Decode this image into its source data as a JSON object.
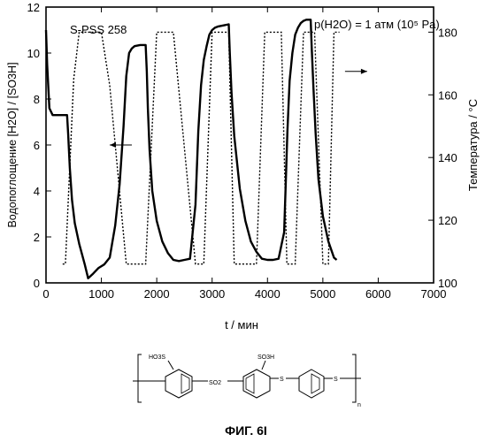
{
  "chart_data": {
    "type": "line",
    "series_name": "S-PSS 258",
    "xlabel": "t / мин",
    "ylabel_left": "Водопоглощение  [H2O] / [SO3H]",
    "ylabel_right": "Температура / °С",
    "annotation": "p(H2O) = 1 атм (10⁵ Pa)",
    "caption": "ФИГ. 6I",
    "xlim": [
      0,
      7000
    ],
    "ylim_left": [
      0,
      12
    ],
    "ylim_right": [
      100,
      188
    ],
    "x_ticks": [
      "0",
      "1000",
      "2000",
      "3000",
      "4000",
      "5000",
      "6000",
      "7000"
    ],
    "y_left_ticks": [
      "0",
      "2",
      "4",
      "6",
      "8",
      "10",
      "12"
    ],
    "y_right_ticks": [
      "100",
      "120",
      "140",
      "160",
      "180"
    ],
    "water_uptake": {
      "x": [
        0,
        20,
        60,
        120,
        200,
        300,
        380,
        400,
        430,
        470,
        520,
        600,
        700,
        760,
        850,
        950,
        1050,
        1150,
        1250,
        1330,
        1400,
        1450,
        1500,
        1550,
        1600,
        1700,
        1800,
        1820,
        1840,
        1870,
        1920,
        2000,
        2100,
        2200,
        2300,
        2400,
        2500,
        2600,
        2700,
        2750,
        2800,
        2850,
        2900,
        2950,
        3000,
        3050,
        3100,
        3200,
        3300,
        3320,
        3350,
        3400,
        3500,
        3600,
        3700,
        3800,
        3900,
        4000,
        4100,
        4200,
        4300,
        4330,
        4360,
        4400,
        4450,
        4500,
        4550,
        4600,
        4650,
        4700,
        4780,
        4800,
        4830,
        4870,
        4920,
        5000,
        5100,
        5200,
        5250
      ],
      "y": [
        11.0,
        9.5,
        7.6,
        7.3,
        7.3,
        7.3,
        7.3,
        6.5,
        5.0,
        3.6,
        2.6,
        1.7,
        0.8,
        0.2,
        0.4,
        0.65,
        0.8,
        1.1,
        2.5,
        4.3,
        6.8,
        9.0,
        10.0,
        10.2,
        10.3,
        10.35,
        10.35,
        9.2,
        7.6,
        5.8,
        4.0,
        2.7,
        1.8,
        1.3,
        1.0,
        0.95,
        1.0,
        1.05,
        3.4,
        6.6,
        8.6,
        9.7,
        10.3,
        10.8,
        11.0,
        11.1,
        11.15,
        11.2,
        11.25,
        10.0,
        8.3,
        6.4,
        4.1,
        2.7,
        1.8,
        1.35,
        1.05,
        1.0,
        1.0,
        1.05,
        2.2,
        4.3,
        6.6,
        8.8,
        10.0,
        10.8,
        11.1,
        11.3,
        11.4,
        11.45,
        11.45,
        10.2,
        8.5,
        6.5,
        4.5,
        2.9,
        1.8,
        1.1,
        1.0
      ]
    },
    "temperature": {
      "x": [
        300,
        350,
        500,
        600,
        1000,
        1150,
        1450,
        1500,
        1800,
        2000,
        2200,
        2300,
        2700,
        2850,
        3000,
        3100,
        3300,
        3400,
        3800,
        3950,
        4250,
        4350,
        4500,
        4650,
        4850,
        5000,
        5100,
        5200,
        5300
      ],
      "y": [
        106,
        106,
        165,
        180,
        180,
        163,
        106,
        106,
        106,
        180,
        180,
        180,
        106,
        106,
        180,
        180,
        180,
        106,
        106,
        180,
        180,
        106,
        106,
        180,
        180,
        106,
        106,
        180,
        180
      ]
    },
    "arrows": [
      {
        "from_x": 1550,
        "to_x": 1150,
        "y": 6.0,
        "axis": "left"
      },
      {
        "from_x": 5400,
        "to_x": 5800,
        "y": 9.2,
        "axis": "left"
      }
    ]
  },
  "structure": {
    "label_so3h_1": "HO3S",
    "label_so3h_2": "SO3H",
    "label_so2": "SO2",
    "label_s1": "S",
    "label_s2": "S",
    "label_n": "n"
  }
}
